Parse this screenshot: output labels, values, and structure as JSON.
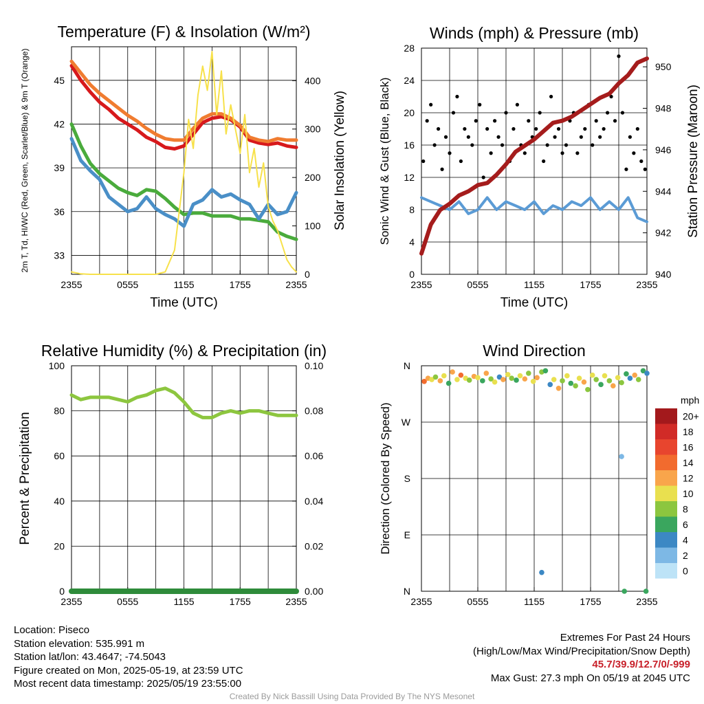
{
  "chart_data": [
    {
      "type": "line",
      "title": "Temperature (F) & Insolation (W/m²)",
      "xlabel": "Time (UTC)",
      "ylabel_left": "2m T, Td, HI/WC (Red, Green, Scarlet/Blue) & 9m T (Orange)",
      "ylabel_right": "Solar Insolation (Yellow)",
      "x_ticks": [
        "2355",
        "0555",
        "1155",
        "1755",
        "2355"
      ],
      "x_range_hours": [
        0,
        24
      ],
      "y_left_ticks": [
        33,
        36,
        39,
        42,
        45
      ],
      "y_left_range": [
        31.7,
        47.3
      ],
      "y_right_ticks": [
        0,
        100,
        200,
        300,
        400
      ],
      "y_right_range": [
        0,
        470
      ],
      "series": [
        {
          "name": "2m T",
          "color": "#d7191c",
          "axis": "left",
          "x": [
            0,
            1,
            2,
            3,
            4,
            5,
            6,
            7,
            8,
            9,
            10,
            11,
            12,
            13,
            14,
            15,
            16,
            17,
            18,
            19,
            20,
            21,
            22,
            23,
            24
          ],
          "y": [
            46.0,
            45.0,
            44.2,
            43.5,
            43.0,
            42.4,
            42.0,
            41.6,
            41.1,
            40.8,
            40.4,
            40.3,
            40.5,
            41.3,
            42.1,
            42.4,
            42.5,
            42.3,
            41.8,
            40.9,
            40.7,
            40.6,
            40.7,
            40.5,
            40.4
          ]
        },
        {
          "name": "9m T",
          "color": "#f07c30",
          "axis": "left",
          "x": [
            0,
            1,
            2,
            3,
            4,
            5,
            6,
            7,
            8,
            9,
            10,
            11,
            12,
            13,
            14,
            15,
            16,
            17,
            18,
            19,
            20,
            21,
            22,
            23,
            24
          ],
          "y": [
            46.3,
            45.5,
            44.7,
            44.1,
            43.6,
            43.1,
            42.6,
            42.2,
            41.7,
            41.3,
            41.0,
            40.9,
            40.9,
            41.7,
            42.4,
            42.7,
            42.7,
            42.4,
            41.9,
            41.1,
            40.9,
            40.8,
            41.0,
            40.9,
            40.9
          ]
        },
        {
          "name": "2m Td",
          "color": "#4aab3c",
          "axis": "left",
          "x": [
            0,
            1,
            2,
            3,
            4,
            5,
            6,
            7,
            8,
            9,
            10,
            11,
            12,
            13,
            14,
            15,
            16,
            17,
            18,
            19,
            20,
            21,
            22,
            23,
            24
          ],
          "y": [
            42.0,
            40.5,
            39.3,
            38.6,
            38.1,
            37.6,
            37.3,
            37.1,
            37.5,
            37.4,
            36.9,
            36.3,
            35.8,
            35.9,
            35.9,
            35.7,
            35.7,
            35.7,
            35.5,
            35.5,
            35.4,
            35.3,
            34.6,
            34.3,
            34.1
          ]
        },
        {
          "name": "HI/WC",
          "color": "#4a8fc7",
          "axis": "left",
          "x": [
            0,
            1,
            2,
            3,
            4,
            5,
            6,
            7,
            8,
            9,
            10,
            11,
            12,
            13,
            14,
            15,
            16,
            17,
            18,
            19,
            20,
            21,
            22,
            23,
            24
          ],
          "y": [
            41.0,
            39.5,
            38.8,
            38.2,
            37.0,
            36.5,
            36.0,
            36.2,
            37.0,
            36.2,
            35.8,
            35.5,
            35.0,
            36.5,
            36.8,
            37.5,
            37.0,
            37.2,
            36.8,
            36.5,
            35.5,
            36.5,
            35.8,
            36.0,
            37.3
          ]
        },
        {
          "name": "Solar Insolation",
          "color": "#f7e14a",
          "axis": "right",
          "x": [
            0,
            1,
            2,
            3,
            4,
            5,
            6,
            7,
            8,
            9,
            10,
            11,
            11.5,
            12,
            12.5,
            13,
            13.5,
            14,
            14.5,
            15,
            15.5,
            16,
            16.5,
            17,
            17.5,
            18,
            18.5,
            19,
            19.5,
            20,
            20.5,
            21,
            21.5,
            22,
            22.5,
            23,
            23.5,
            24
          ],
          "y": [
            5,
            1,
            0,
            0,
            0,
            0,
            0,
            0,
            0,
            0,
            5,
            50,
            130,
            210,
            320,
            260,
            370,
            430,
            380,
            460,
            330,
            420,
            290,
            350,
            300,
            250,
            330,
            210,
            260,
            180,
            230,
            140,
            110,
            90,
            60,
            30,
            15,
            5
          ]
        }
      ]
    },
    {
      "type": "scatter",
      "title": "Winds (mph) & Pressure (mb)",
      "xlabel": "Time (UTC)",
      "ylabel_left": "Sonic Wind & Gust (Blue, Black)",
      "ylabel_right": "Station Pressure (Maroon)",
      "x_ticks": [
        "2355",
        "0555",
        "1155",
        "1755",
        "2355"
      ],
      "x_range_hours": [
        0,
        24
      ],
      "y_left_ticks": [
        0,
        4,
        8,
        12,
        16,
        20,
        24,
        28
      ],
      "y_left_range": [
        0,
        28
      ],
      "y_right_ticks": [
        940,
        942,
        944,
        946,
        948,
        950
      ],
      "y_right_range": [
        940,
        950.9
      ],
      "series": [
        {
          "name": "Sonic Wind",
          "color": "#5b9bd5",
          "axis": "left",
          "x": [
            0,
            1,
            2,
            3,
            4,
            5,
            6,
            7,
            8,
            9,
            10,
            11,
            12,
            13,
            14,
            15,
            16,
            17,
            18,
            19,
            20,
            21,
            22,
            23,
            24
          ],
          "y": [
            9.5,
            9.0,
            8.5,
            8.0,
            9.0,
            7.5,
            8.0,
            9.5,
            8.0,
            9.0,
            8.5,
            8.0,
            9.0,
            7.5,
            8.5,
            8.0,
            9.0,
            8.5,
            9.5,
            8.0,
            9.0,
            8.0,
            9.5,
            7.0,
            6.5
          ]
        },
        {
          "name": "Gust",
          "color": "#000000",
          "axis": "left",
          "x": [
            0.2,
            0.6,
            1.0,
            1.4,
            1.8,
            2.2,
            2.6,
            3.0,
            3.4,
            3.8,
            4.2,
            4.6,
            5.0,
            5.4,
            5.8,
            6.2,
            6.6,
            7.0,
            7.4,
            7.8,
            8.2,
            8.6,
            9.0,
            9.4,
            9.8,
            10.2,
            10.6,
            11.0,
            11.4,
            11.8,
            12.2,
            12.6,
            13.0,
            13.4,
            13.8,
            14.2,
            14.6,
            15.0,
            15.4,
            15.8,
            16.2,
            16.6,
            17.0,
            17.4,
            17.8,
            18.2,
            18.6,
            19.0,
            19.4,
            19.8,
            20.2,
            20.6,
            21.0,
            21.4,
            21.8,
            22.2,
            22.6,
            23.0,
            23.4,
            23.8
          ],
          "y": [
            14,
            19,
            21,
            16,
            18,
            13,
            17,
            15,
            20,
            22,
            14,
            18,
            17,
            16,
            19,
            21,
            12,
            18,
            15,
            19,
            17,
            16,
            20,
            14,
            18,
            21,
            16,
            15,
            19,
            17,
            18,
            20,
            14,
            16,
            22,
            17,
            18,
            15,
            16,
            19,
            20,
            15,
            17,
            18,
            21,
            16,
            19,
            17,
            18,
            20,
            22,
            19,
            27,
            20,
            13,
            17,
            15,
            18,
            14,
            13
          ]
        },
        {
          "name": "Station Pressure",
          "color": "#a51c1c",
          "axis": "right",
          "x": [
            0,
            1,
            2,
            3,
            4,
            5,
            6,
            7,
            8,
            9,
            10,
            11,
            12,
            13,
            14,
            15,
            16,
            17,
            18,
            19,
            20,
            21,
            22,
            23,
            24
          ],
          "y": [
            941.0,
            942.4,
            943.1,
            943.4,
            943.8,
            944.0,
            944.3,
            944.4,
            944.8,
            945.3,
            945.9,
            946.2,
            946.5,
            946.9,
            947.3,
            947.4,
            947.6,
            947.9,
            948.2,
            948.5,
            948.7,
            949.2,
            949.6,
            950.2,
            950.4
          ]
        }
      ]
    },
    {
      "type": "line",
      "title": "Relative Humidity (%) & Precipitation (in)",
      "xlabel": "",
      "ylabel_left": "Percent & Precipitation",
      "x_ticks": [
        "2355",
        "0555",
        "1155",
        "1755",
        "2355"
      ],
      "x_range_hours": [
        0,
        24
      ],
      "y_left_ticks": [
        0,
        20,
        40,
        60,
        80,
        100
      ],
      "y_left_range": [
        0,
        100
      ],
      "y_right_ticks": [
        "0.00",
        "0.02",
        "0.04",
        "0.06",
        "0.08",
        "0.10"
      ],
      "y_right_range": [
        0,
        0.1
      ],
      "series": [
        {
          "name": "Relative Humidity",
          "color": "#8dc63f",
          "axis": "left",
          "x": [
            0,
            1,
            2,
            3,
            4,
            5,
            6,
            7,
            8,
            9,
            10,
            11,
            12,
            13,
            14,
            15,
            16,
            17,
            18,
            19,
            20,
            21,
            22,
            23,
            24
          ],
          "y": [
            87,
            85,
            86,
            86,
            86,
            85,
            84,
            86,
            87,
            89,
            90,
            88,
            84,
            79,
            77,
            77,
            79,
            80,
            79,
            80,
            80,
            79,
            78,
            78,
            78
          ]
        },
        {
          "name": "Precipitation",
          "color": "#2e8b3a",
          "axis": "right",
          "x": [
            0,
            24
          ],
          "y": [
            0,
            0
          ]
        }
      ]
    },
    {
      "type": "scatter",
      "title": "Wind Direction",
      "xlabel": "",
      "ylabel": "Direction (Colored By Speed)",
      "x_ticks": [
        "2355",
        "0555",
        "1155",
        "1755",
        "2355"
      ],
      "x_range_hours": [
        0,
        24
      ],
      "y_ticks": [
        "N",
        "E",
        "S",
        "W",
        "N"
      ],
      "y_range_deg": [
        0,
        360
      ],
      "legend_title": "mph",
      "legend_labels": [
        "20+",
        "18",
        "16",
        "14",
        "12",
        "10",
        "8",
        "6",
        "4",
        "2",
        "0"
      ],
      "legend_colors": [
        "#a3191c",
        "#d12b27",
        "#e8452e",
        "#f26b2e",
        "#f9a54b",
        "#e9e04f",
        "#8cc63f",
        "#3aa65e",
        "#3c88c4",
        "#7db8e5",
        "#bde3f7"
      ],
      "points_x": [
        0.3,
        0.7,
        1.1,
        1.5,
        2.0,
        2.4,
        2.9,
        3.3,
        3.8,
        4.2,
        4.7,
        5.1,
        5.6,
        6.0,
        6.5,
        6.9,
        7.4,
        7.8,
        8.3,
        8.7,
        9.2,
        9.6,
        10.1,
        10.5,
        11.0,
        11.4,
        11.9,
        12.3,
        12.8,
        13.2,
        13.7,
        14.1,
        14.6,
        15.0,
        15.5,
        15.9,
        16.4,
        16.8,
        17.3,
        17.7,
        18.2,
        18.6,
        19.1,
        19.5,
        20.0,
        20.4,
        20.9,
        21.3,
        21.8,
        22.2,
        22.7,
        23.1,
        23.6,
        24.0,
        12.8,
        21.3,
        21.6,
        23.9
      ],
      "points_y": [
        335,
        340,
        338,
        342,
        336,
        344,
        332,
        350,
        338,
        345,
        340,
        337,
        343,
        341,
        336,
        348,
        339,
        334,
        342,
        338,
        346,
        340,
        337,
        344,
        339,
        348,
        335,
        341,
        350,
        352,
        330,
        338,
        324,
        336,
        344,
        332,
        328,
        340,
        334,
        322,
        345,
        338,
        330,
        344,
        336,
        328,
        341,
        333,
        347,
        340,
        345,
        338,
        352,
        348,
        30,
        215,
        0,
        0
      ],
      "points_color": [
        3,
        4,
        5,
        6,
        4,
        5,
        7,
        4,
        5,
        3,
        5,
        6,
        4,
        5,
        7,
        4,
        6,
        5,
        8,
        4,
        5,
        6,
        7,
        5,
        4,
        6,
        5,
        4,
        6,
        7,
        8,
        5,
        4,
        6,
        5,
        7,
        6,
        5,
        4,
        6,
        5,
        6,
        7,
        5,
        6,
        4,
        5,
        6,
        7,
        8,
        4,
        6,
        7,
        8,
        8,
        9,
        7,
        7
      ]
    }
  ],
  "info_left": {
    "location": "Location: Piseco",
    "elevation": "Station elevation: 535.991 m",
    "latlon": "Station lat/lon: 43.4647; -74.5043",
    "created": "Figure created on Mon, 2025-05-19, at 23:59 UTC",
    "recent": "Most recent data timestamp: 2025/05/19 23:55:00"
  },
  "info_right": {
    "line1": "Extremes For Past 24 Hours",
    "line2": "(High/Low/Max Wind/Precipitation/Snow Depth)",
    "extremes": "45.7/39.9/12.7/0/-999",
    "max_gust": "Max Gust: 27.3 mph On 05/19 at 2045 UTC"
  },
  "credit": "Created By Nick Bassill Using Data Provided By The NYS Mesonet"
}
